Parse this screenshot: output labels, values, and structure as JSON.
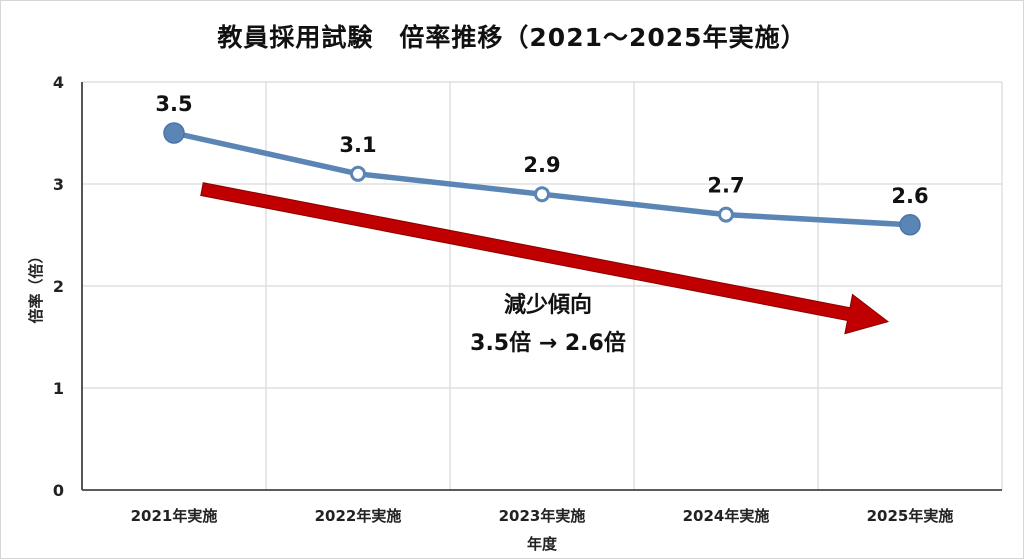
{
  "chart_data": {
    "type": "line",
    "title": "教員採用試験　倍率推移（2021～2025年実施）",
    "xlabel": "年度",
    "ylabel": "倍率（倍）",
    "categories": [
      "2021年実施",
      "2022年実施",
      "2023年実施",
      "2024年実施",
      "2025年実施"
    ],
    "series": [
      {
        "values": [
          3.5,
          3.1,
          2.9,
          2.7,
          2.6
        ],
        "data_labels": [
          "3.5",
          "3.1",
          "2.9",
          "2.7",
          "2.6"
        ],
        "color": "#5b85b5"
      }
    ],
    "ylim": [
      0,
      4
    ],
    "yticks": [
      "0",
      "1",
      "2",
      "3",
      "4"
    ],
    "grid": true,
    "annotation": {
      "line1": "減少傾向",
      "line2": "3.5倍 → 2.6倍",
      "arrow_color": "#c00000",
      "from": {
        "category": "2021年実施",
        "value": 2.95
      },
      "to": {
        "category": "2025年実施",
        "value": 1.65
      }
    }
  }
}
